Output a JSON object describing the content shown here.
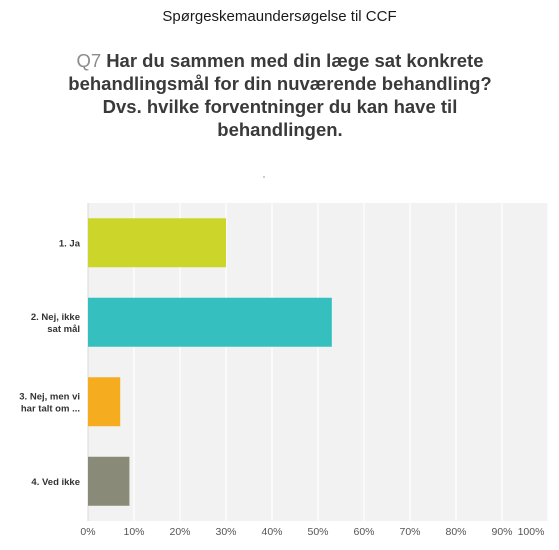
{
  "survey_title": "Spørgeskemaundersøgelse til CCF",
  "question": {
    "number": "Q7",
    "text": "Har du sammen med din læge sat konkrete behandlingsmål for din nuværende behandling? Dvs. hvilke forventninger du kan have til behandlingen."
  },
  "chart_data": {
    "type": "bar",
    "orientation": "horizontal",
    "title": "",
    "xlabel": "",
    "ylabel": "",
    "categories": [
      "1. Ja",
      "2. Nej, ikke sat mål",
      "3. Nej, men vi har talt om ...",
      "4. Ved ikke"
    ],
    "category_lines": [
      [
        "1. Ja"
      ],
      [
        "2. Nej, ikke",
        "sat mål"
      ],
      [
        "3. Nej, men vi",
        "har talt om ..."
      ],
      [
        "4. Ved ikke"
      ]
    ],
    "values": [
      30,
      53,
      7,
      9
    ],
    "colors": [
      "#ccd52a",
      "#35bfbf",
      "#f5ad1f",
      "#8a8a78"
    ],
    "xlim": [
      0,
      100
    ],
    "x_ticks": [
      "0%",
      "10%",
      "20%",
      "30%",
      "40%",
      "50%",
      "60%",
      "70%",
      "80%",
      "90%",
      "100%"
    ],
    "grid": true,
    "legend": "none"
  }
}
